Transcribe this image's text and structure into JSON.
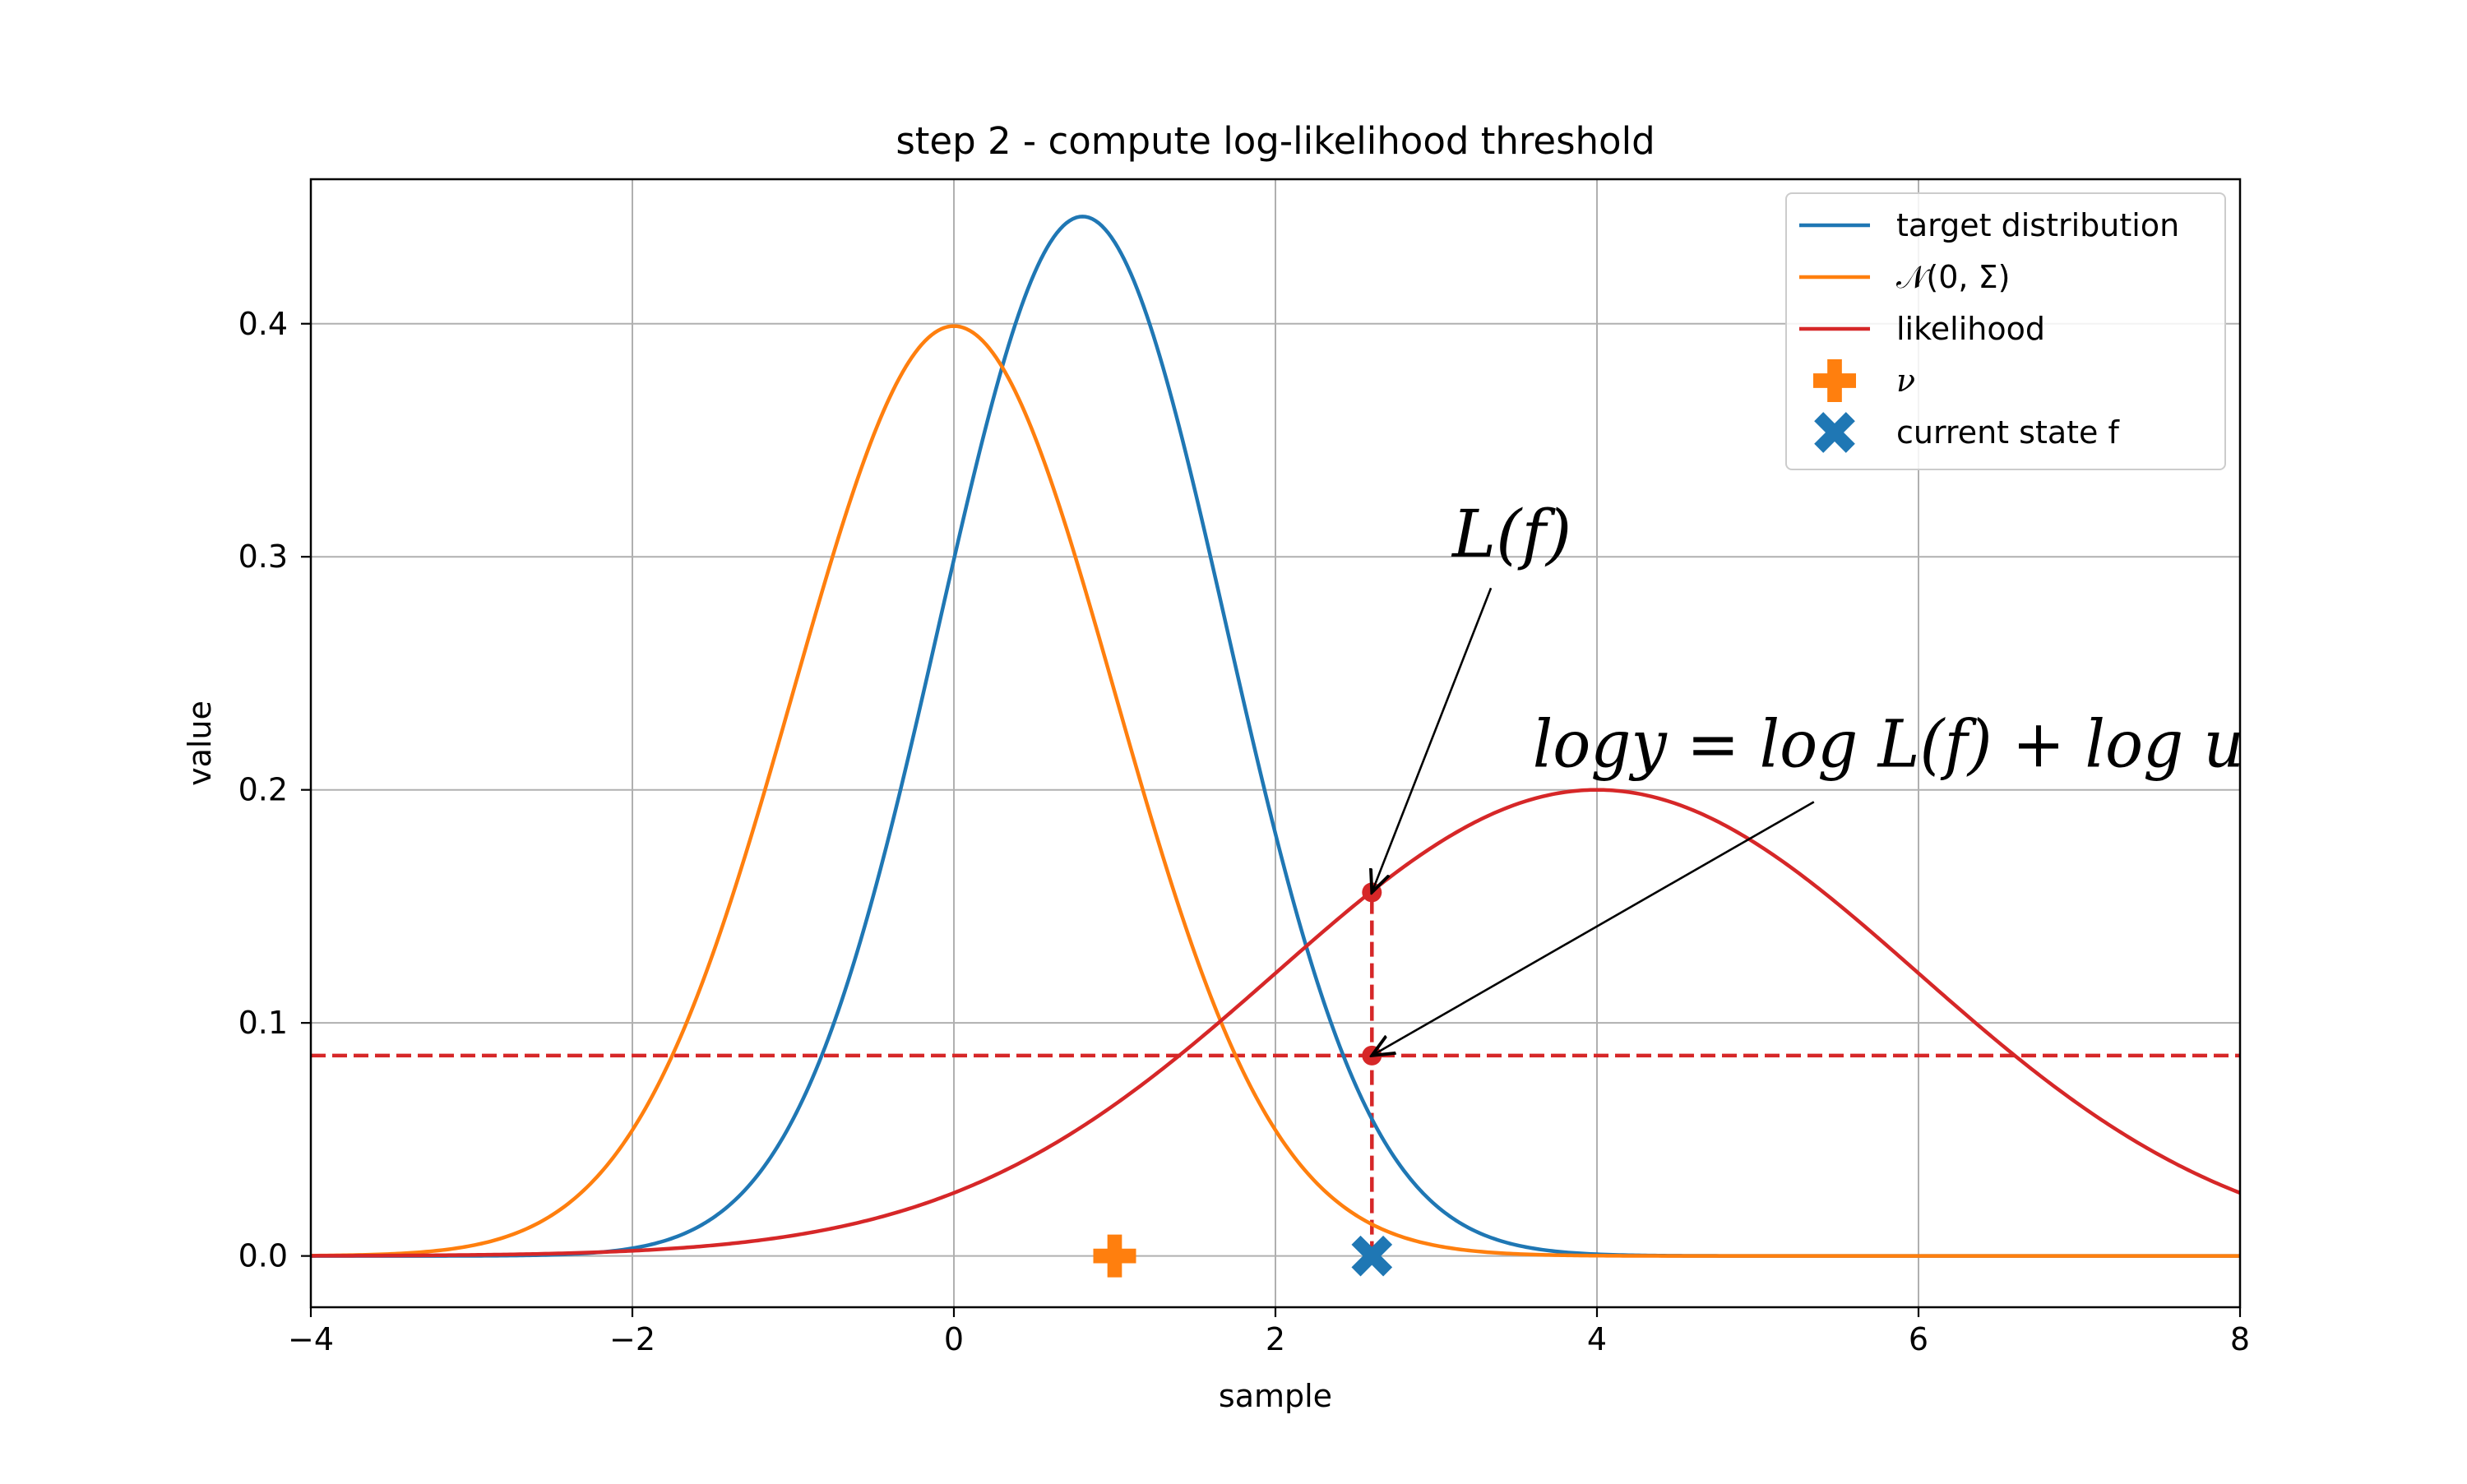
{
  "chart_data": {
    "type": "line",
    "title": "step 2 - compute log-likelihood threshold",
    "xlabel": "sample",
    "ylabel": "value",
    "xlim": [
      -4,
      8
    ],
    "ylim": [
      -0.022,
      0.462
    ],
    "x_ticks": [
      -4,
      -2,
      0,
      2,
      4,
      6,
      8
    ],
    "x_tick_labels": [
      "−4",
      "−2",
      "0",
      "2",
      "4",
      "6",
      "8"
    ],
    "y_ticks": [
      0.0,
      0.1,
      0.2,
      0.3,
      0.4
    ],
    "y_tick_labels": [
      "0.0",
      "0.1",
      "0.2",
      "0.3",
      "0.4"
    ],
    "grid": true,
    "legend_position": "top-right",
    "series": [
      {
        "name": "target distribution",
        "kind": "line",
        "color": "#1f77b4",
        "distribution": "normal",
        "mean": 0.8,
        "std": 0.894,
        "peak": 0.446
      },
      {
        "name": "𝒩(0, Σ)",
        "kind": "line",
        "color": "#ff7f0e",
        "distribution": "normal",
        "mean": 0.0,
        "std": 1.0,
        "peak": 0.399
      },
      {
        "name": "likelihood",
        "kind": "line",
        "color": "#d62728",
        "distribution": "normal",
        "mean": 4.0,
        "std": 2.0,
        "peak": 0.2
      },
      {
        "name": "ν",
        "kind": "marker",
        "marker": "plus",
        "color": "#ff7f0e",
        "points": [
          [
            1.0,
            0.0
          ]
        ]
      },
      {
        "name": "current state f",
        "kind": "marker",
        "marker": "x",
        "color": "#1f77b4",
        "points": [
          [
            2.6,
            0.0
          ]
        ]
      }
    ],
    "threshold": {
      "y": 0.086,
      "color": "#d62728",
      "style": "dashed"
    },
    "current_x": 2.6,
    "points": [
      {
        "x": 2.6,
        "y": 0.156,
        "color": "#d62728"
      },
      {
        "x": 2.6,
        "y": 0.086,
        "color": "#d62728"
      }
    ],
    "annotations": [
      {
        "text": "L(f)",
        "text_x": 3.1,
        "text_y": 0.3,
        "arrow_to": [
          2.6,
          0.156
        ]
      },
      {
        "text": "logy = log L(f) + log u",
        "text_x": 3.6,
        "text_y": 0.21,
        "arrow_to": [
          2.6,
          0.086
        ]
      }
    ]
  }
}
